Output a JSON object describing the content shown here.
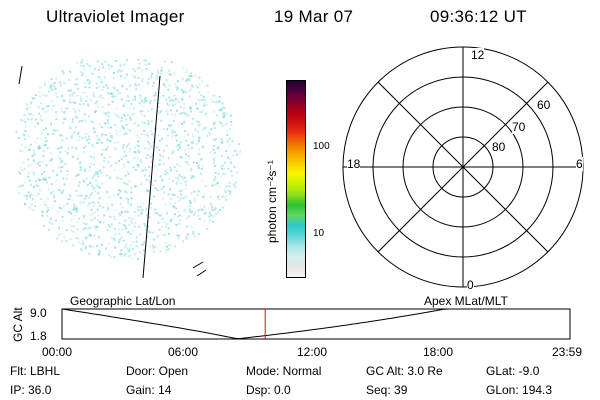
{
  "header": {
    "instrument": "Ultraviolet Imager",
    "date": "19 Mar 07",
    "time": "09:36:12 UT"
  },
  "colorbar": {
    "unit_label": "photon cm⁻²s⁻¹",
    "ticks": [
      "100",
      "10"
    ],
    "colors": [
      "#f5f5f5",
      "#e6e6e6",
      "#d4f0f0",
      "#a8e6e6",
      "#5cd6d6",
      "#2ec9c9",
      "#60d860",
      "#30c030",
      "#90e020",
      "#c8f000",
      "#f8f800",
      "#f8d000",
      "#f8a000",
      "#f07000",
      "#e83010",
      "#d01010",
      "#b00010",
      "#800030",
      "#500040",
      "#200030"
    ]
  },
  "polar": {
    "lat_labels": [
      "60",
      "70",
      "80"
    ],
    "mlt_labels": {
      "top": "12",
      "left": "18",
      "right": "6",
      "bottom": "0"
    }
  },
  "timeline": {
    "ylabel": "GC Alt",
    "ymax": "9.0",
    "ymin": "1.8",
    "left_label": "Geographic Lat/Lon",
    "right_label": "Apex  MLat/MLT",
    "xticks": [
      "00:00",
      "06:00",
      "12:00",
      "18:00",
      "23:59"
    ],
    "current_time_frac": 0.4
  },
  "footer": {
    "row1": [
      "Flt: LBHL",
      "Door: Open",
      "Mode: Normal",
      "GC Alt: 3.0 Re",
      "GLat:  -9.0"
    ],
    "row2": [
      "IP: 36.0",
      "Gain: 14",
      "Dsp:     0.0",
      "Seq: 39",
      "GLon: 194.3"
    ]
  },
  "colors": {
    "speckle": "#7fd8d8",
    "marker": "#e01010"
  }
}
